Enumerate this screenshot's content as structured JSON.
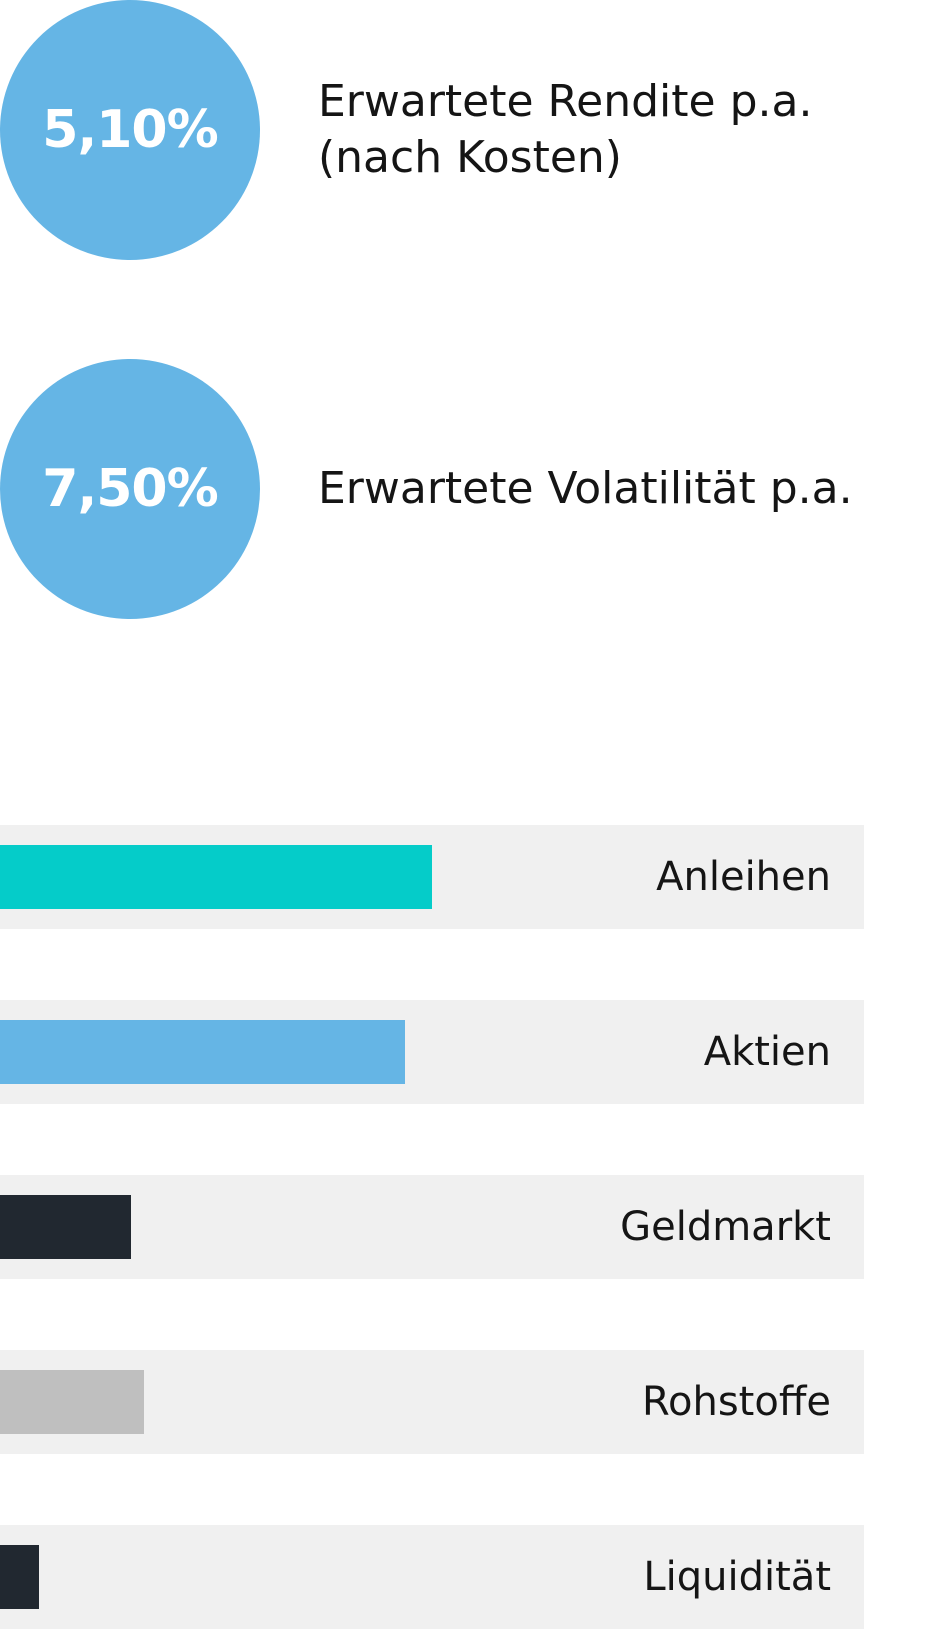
{
  "kpis": {
    "return": {
      "value": "5,10%",
      "label": "Erwartete Rendite p.a.\n(nach Kosten)"
    },
    "volatility": {
      "value": "7,50%",
      "label": "Erwartete Volatilität p.a."
    }
  },
  "colors": {
    "circle": "#65b5e5",
    "row_background": "#f0f0f0"
  },
  "chart_data": {
    "type": "bar",
    "orientation": "horizontal",
    "categories": [
      "Anleihen",
      "Aktien",
      "Geldmarkt",
      "Rohstoffe",
      "Liquidität"
    ],
    "values": [
      48,
      45,
      14.5,
      16,
      4.3
    ],
    "colors": [
      "#05ccc9",
      "#65b5e5",
      "#212830",
      "#bfbfbf",
      "#212830"
    ],
    "title": "",
    "xlabel": "",
    "ylabel": "",
    "grid": false,
    "legend": "none"
  }
}
